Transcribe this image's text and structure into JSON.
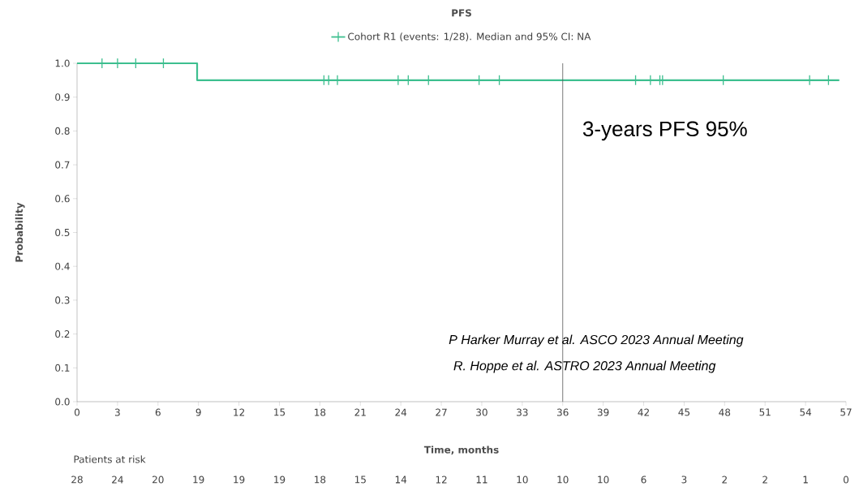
{
  "chart_data": {
    "type": "step",
    "title": "PFS",
    "xlabel": "Time, months",
    "ylabel": "Probability",
    "xlim": [
      0,
      57
    ],
    "xticks": [
      0,
      3,
      6,
      9,
      12,
      15,
      18,
      21,
      24,
      27,
      30,
      33,
      36,
      39,
      42,
      45,
      48,
      51,
      54,
      57
    ],
    "ylim": [
      0,
      1
    ],
    "yticks": [
      {
        "value": 0,
        "label": "0.0"
      },
      {
        "value": 0.1,
        "label": "0.1"
      },
      {
        "value": 0.2,
        "label": "0.2"
      },
      {
        "value": 0.3,
        "label": "0.3"
      },
      {
        "value": 0.4,
        "label": "0.4"
      },
      {
        "value": 0.5,
        "label": "0.5"
      },
      {
        "value": 0.6,
        "label": "0.6"
      },
      {
        "value": 0.7,
        "label": "0.7"
      },
      {
        "value": 0.8,
        "label": "0.8"
      },
      {
        "value": 0.9,
        "label": "0.9"
      },
      {
        "value": 1,
        "label": "1.0"
      }
    ],
    "series": [
      {
        "name": "Cohort R1 (events: 1/28). Median and 95% CI: NA",
        "color": "#3dbf8f",
        "marker": "none",
        "x": [
          0,
          8.9,
          56.5
        ],
        "values": [
          1,
          0.95,
          0.95
        ]
      },
      {
        "type": "scatter",
        "color": "#3dbf8f",
        "marker": "cross",
        "x": [
          1.85,
          3.0,
          4.35,
          6.4,
          18.3,
          18.65,
          19.3,
          23.8,
          24.55,
          26.05,
          29.8,
          31.3,
          41.4,
          42.5,
          43.2,
          43.4,
          47.9,
          54.3,
          55.7
        ],
        "values": [
          1,
          1,
          1,
          1,
          0.95,
          0.95,
          0.95,
          0.95,
          0.95,
          0.95,
          0.95,
          0.95,
          0.95,
          0.95,
          0.95,
          0.95,
          0.95,
          0.95,
          0.95
        ]
      }
    ],
    "ref_lines": [
      {
        "axis": "x",
        "value": 36,
        "label": "3-years PFS 95%",
        "color": "#555555"
      }
    ],
    "legend": "top",
    "annotations": [
      "P Harker Murray et al.  ASCO 2023 Annual Meeting",
      "R. Hoppe et al. ASTRO 2023 Annual Meeting",
      "Patients at risk",
      "28",
      "24",
      "20",
      "19",
      "19",
      "19",
      "18",
      "15",
      "14",
      "12",
      "11",
      "10",
      "10",
      "10",
      "6",
      "3",
      "2",
      "2",
      "1",
      "0"
    ]
  }
}
